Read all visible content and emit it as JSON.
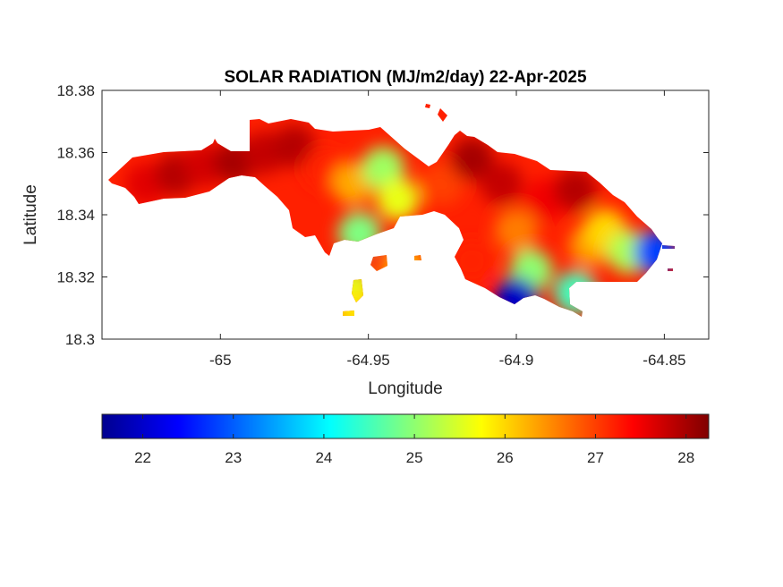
{
  "chart_data": {
    "type": "heatmap",
    "title": "SOLAR RADIATION (MJ/m2/day) 22-Apr-2025",
    "xlabel": "Longitude",
    "ylabel": "Latitude",
    "xlim": [
      -65.04,
      -64.835
    ],
    "ylim": [
      18.3,
      18.38
    ],
    "xticks": [
      -65,
      -64.95,
      -64.9,
      -64.85
    ],
    "xtick_labels": [
      "-65",
      "-64.95",
      "-64.9",
      "-64.85"
    ],
    "yticks": [
      18.3,
      18.32,
      18.34,
      18.36,
      18.38
    ],
    "ytick_labels": [
      "18.3",
      "18.32",
      "18.34",
      "18.36",
      "18.38"
    ],
    "colorbar": {
      "colormap": "jet",
      "range": [
        21.55,
        28.25
      ],
      "ticks": [
        22,
        23,
        24,
        25,
        26,
        27,
        28
      ],
      "tick_labels": [
        "22",
        "23",
        "24",
        "25",
        "26",
        "27",
        "28"
      ],
      "placement": "bottom"
    },
    "grid": false,
    "field_samples": [
      {
        "lon": -65.025,
        "lat": 18.35,
        "value": 27.6
      },
      {
        "lon": -65.015,
        "lat": 18.353,
        "value": 27.9
      },
      {
        "lon": -65.005,
        "lat": 18.356,
        "value": 27.7
      },
      {
        "lon": -64.995,
        "lat": 18.357,
        "value": 28.0
      },
      {
        "lon": -64.985,
        "lat": 18.36,
        "value": 27.8
      },
      {
        "lon": -64.975,
        "lat": 18.362,
        "value": 27.9
      },
      {
        "lon": -64.965,
        "lat": 18.355,
        "value": 27.2
      },
      {
        "lon": -64.955,
        "lat": 18.35,
        "value": 26.3
      },
      {
        "lon": -64.945,
        "lat": 18.355,
        "value": 25.1
      },
      {
        "lon": -64.94,
        "lat": 18.345,
        "value": 25.6
      },
      {
        "lon": -64.953,
        "lat": 18.334,
        "value": 24.9
      },
      {
        "lon": -64.938,
        "lat": 18.323,
        "value": 26.2
      },
      {
        "lon": -64.925,
        "lat": 18.35,
        "value": 27.0
      },
      {
        "lon": -64.915,
        "lat": 18.358,
        "value": 28.0
      },
      {
        "lon": -64.905,
        "lat": 18.35,
        "value": 27.8
      },
      {
        "lon": -64.9,
        "lat": 18.335,
        "value": 26.6
      },
      {
        "lon": -64.89,
        "lat": 18.345,
        "value": 27.5
      },
      {
        "lon": -64.88,
        "lat": 18.348,
        "value": 27.9
      },
      {
        "lon": -64.875,
        "lat": 18.33,
        "value": 26.4
      },
      {
        "lon": -64.87,
        "lat": 18.335,
        "value": 26.0
      },
      {
        "lon": -64.862,
        "lat": 18.328,
        "value": 25.2
      },
      {
        "lon": -64.853,
        "lat": 18.328,
        "value": 22.8
      },
      {
        "lon": -64.895,
        "lat": 18.322,
        "value": 25.0
      },
      {
        "lon": -64.9,
        "lat": 18.313,
        "value": 22.0
      },
      {
        "lon": -64.88,
        "lat": 18.315,
        "value": 24.5
      },
      {
        "lon": -64.915,
        "lat": 18.325,
        "value": 27.2
      },
      {
        "lon": -64.955,
        "lat": 18.316,
        "value": 25.5
      },
      {
        "lon": -64.955,
        "lat": 18.31,
        "value": 25.9
      }
    ]
  }
}
